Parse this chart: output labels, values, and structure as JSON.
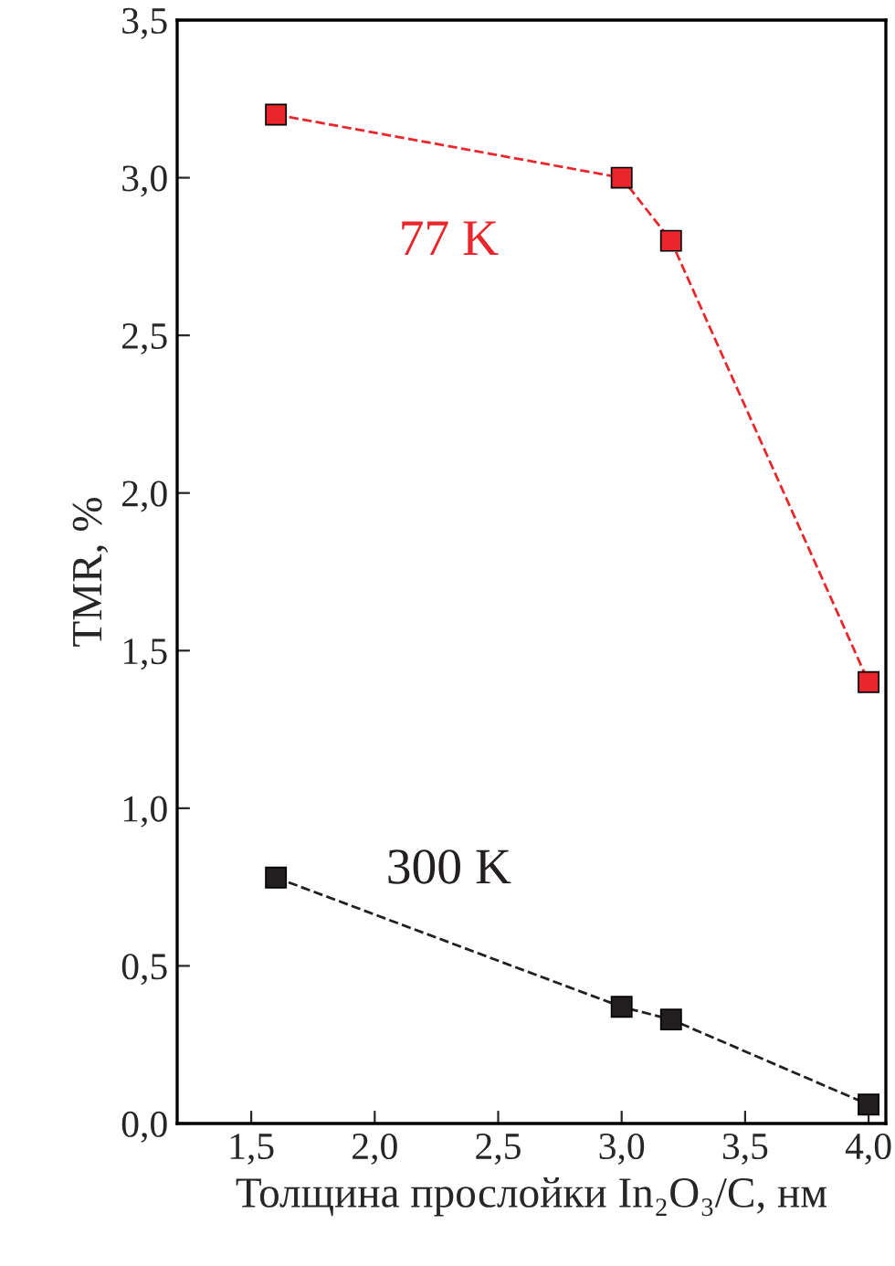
{
  "chart_data": {
    "type": "line",
    "xlabel": "Толщина прослойки In₂O₃/C, нм",
    "ylabel": "TMR, %",
    "marker": "square",
    "line_style": "dashed",
    "grid": false,
    "legend": false,
    "xlim": [
      1.2,
      4.07
    ],
    "ylim": [
      0,
      3.5
    ],
    "xticks": [
      {
        "value": 1.5,
        "label": "1,5"
      },
      {
        "value": 2.0,
        "label": "2,0"
      },
      {
        "value": 2.5,
        "label": "2,5"
      },
      {
        "value": 3.0,
        "label": "3,0"
      },
      {
        "value": 3.5,
        "label": "3,5"
      },
      {
        "value": 4.0,
        "label": "4,0"
      }
    ],
    "yticks": [
      {
        "value": 0,
        "label": "0,0"
      },
      {
        "value": 0.5,
        "label": "0,5"
      },
      {
        "value": 1.0,
        "label": "1,0"
      },
      {
        "value": 1.5,
        "label": "1,5"
      },
      {
        "value": 2.0,
        "label": "2,0"
      },
      {
        "value": 2.5,
        "label": "2,5"
      },
      {
        "value": 3.0,
        "label": "3,0"
      },
      {
        "value": 3.5,
        "label": "3,5"
      }
    ],
    "series": [
      {
        "name": "77 K",
        "color": "#e8262b",
        "x": [
          1.6,
          3.0,
          3.2,
          4.0
        ],
        "values": [
          3.2,
          3.0,
          2.8,
          1.4
        ]
      },
      {
        "name": "300 K",
        "color": "#231f20",
        "x": [
          1.6,
          3.0,
          3.2,
          4.0
        ],
        "values": [
          0.78,
          0.37,
          0.33,
          0.06
        ]
      }
    ]
  }
}
